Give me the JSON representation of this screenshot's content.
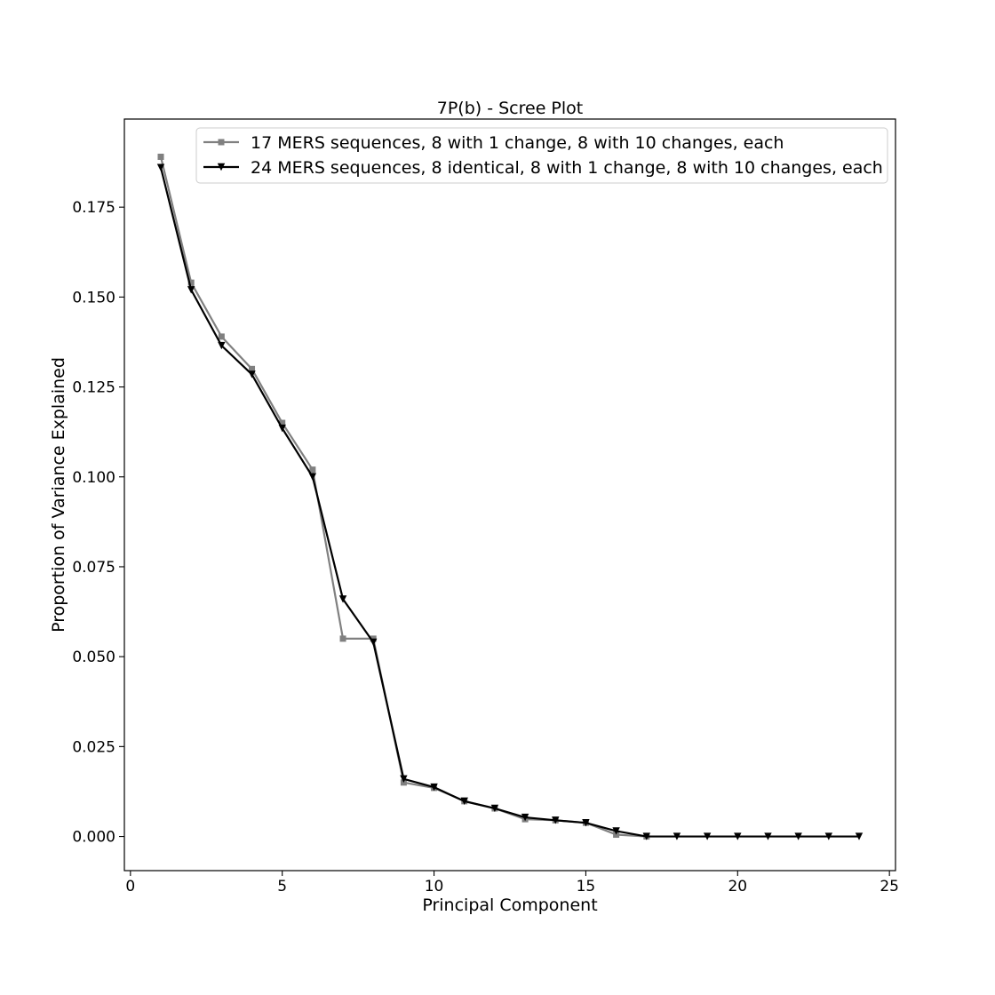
{
  "chart_data": {
    "type": "line",
    "title": "7P(b) - Scree Plot",
    "xlabel": "Principal Component",
    "ylabel": "Proportion of Variance Explained",
    "xlim": [
      -0.2,
      25.2
    ],
    "ylim": [
      -0.0095,
      0.1995
    ],
    "x_ticks": [
      0,
      5,
      10,
      15,
      20,
      25
    ],
    "y_ticks": [
      0.0,
      0.025,
      0.05,
      0.075,
      0.1,
      0.125,
      0.15,
      0.175
    ],
    "y_tick_labels": [
      "0.000",
      "0.025",
      "0.050",
      "0.075",
      "0.100",
      "0.125",
      "0.150",
      "0.175"
    ],
    "grid": false,
    "legend_position": "upper-right",
    "series": [
      {
        "name": "17 MERS sequences, 8 with 1 change, 8 with 10 changes, each",
        "color": "#808080",
        "marker": "square",
        "x": [
          1,
          2,
          3,
          4,
          5,
          6,
          7,
          8,
          9,
          10,
          11,
          12,
          13,
          14,
          15,
          16,
          17
        ],
        "values": [
          0.189,
          0.154,
          0.139,
          0.13,
          0.115,
          0.102,
          0.055,
          0.055,
          0.015,
          0.0135,
          0.0098,
          0.0078,
          0.0048,
          0.0045,
          0.0038,
          0.0005,
          0.0
        ]
      },
      {
        "name": "24 MERS sequences, 8 identical, 8 with 1 change, 8 with 10 changes, each",
        "color": "#000000",
        "marker": "triangle-down",
        "x": [
          1,
          2,
          3,
          4,
          5,
          6,
          7,
          8,
          9,
          10,
          11,
          12,
          13,
          14,
          15,
          16,
          17,
          18,
          19,
          20,
          21,
          22,
          23,
          24
        ],
        "values": [
          0.186,
          0.152,
          0.1365,
          0.1285,
          0.1135,
          0.1,
          0.066,
          0.054,
          0.016,
          0.0137,
          0.0098,
          0.0078,
          0.0053,
          0.0045,
          0.0038,
          0.0015,
          0.0,
          0.0,
          0.0,
          0.0,
          0.0,
          0.0,
          0.0,
          0.0
        ]
      }
    ]
  }
}
